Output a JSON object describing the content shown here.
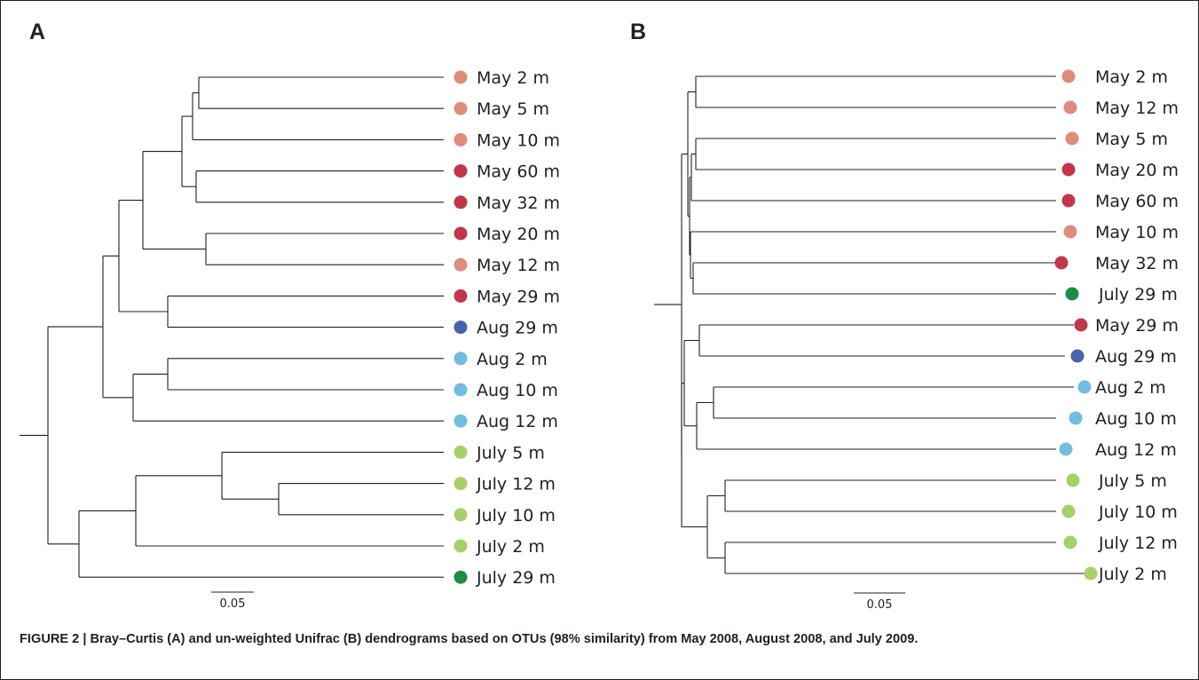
{
  "panels": [
    {
      "letter": "A",
      "leaves": [
        {
          "label": "May 2 m",
          "group": "may_shallow"
        },
        {
          "label": "May 5 m",
          "group": "may_shallow"
        },
        {
          "label": "May 10 m",
          "group": "may_shallow"
        },
        {
          "label": "May 60 m",
          "group": "may_deep"
        },
        {
          "label": "May 32 m",
          "group": "may_deep"
        },
        {
          "label": "May 20 m",
          "group": "may_deep"
        },
        {
          "label": "May 12 m",
          "group": "may_shallow"
        },
        {
          "label": "May 29 m",
          "group": "may_deep"
        },
        {
          "label": "Aug 29 m",
          "group": "aug_deep"
        },
        {
          "label": "Aug 2 m",
          "group": "aug_shallow"
        },
        {
          "label": "Aug 10 m",
          "group": "aug_shallow"
        },
        {
          "label": "Aug 12 m",
          "group": "aug_shallow"
        },
        {
          "label": "July 5 m",
          "group": "july_shallow"
        },
        {
          "label": "July 12 m",
          "group": "july_shallow"
        },
        {
          "label": "July 10 m",
          "group": "july_shallow"
        },
        {
          "label": "July 2 m",
          "group": "july_shallow"
        },
        {
          "label": "July 29 m",
          "group": "july_deep"
        }
      ],
      "scale_label": "0.05"
    },
    {
      "letter": "B",
      "leaves": [
        {
          "label": "May 2 m",
          "group": "may_shallow"
        },
        {
          "label": "May 12 m",
          "group": "may_shallow"
        },
        {
          "label": "May 5 m",
          "group": "may_shallow"
        },
        {
          "label": "May 20 m",
          "group": "may_deep"
        },
        {
          "label": "May 60 m",
          "group": "may_deep"
        },
        {
          "label": "May 10 m",
          "group": "may_shallow"
        },
        {
          "label": "May 32 m",
          "group": "may_deep"
        },
        {
          "label": "July 29 m",
          "group": "july_deep"
        },
        {
          "label": "May 29 m",
          "group": "may_deep"
        },
        {
          "label": "Aug 29 m",
          "group": "aug_deep"
        },
        {
          "label": "Aug 2 m",
          "group": "aug_shallow"
        },
        {
          "label": "Aug 10 m",
          "group": "aug_shallow"
        },
        {
          "label": "Aug 12 m",
          "group": "aug_shallow"
        },
        {
          "label": "July 5 m",
          "group": "july_shallow"
        },
        {
          "label": "July 10 m",
          "group": "july_shallow"
        },
        {
          "label": "July 12 m",
          "group": "july_shallow"
        },
        {
          "label": "July 2 m",
          "group": "july_shallow"
        }
      ],
      "scale_label": "0.05"
    }
  ],
  "group_colors": {
    "may_shallow": "#dd8c7e",
    "may_deep": "#c0364a",
    "aug_deep": "#4c62aa",
    "aug_shallow": "#70bde0",
    "july_shallow": "#a8d06a",
    "july_deep": "#1f8c45"
  },
  "line_color": "#231f20",
  "caption": "FIGURE 2 | Bray–Curtis (A) and un-weighted Unifrac (B) dendrograms based on OTUs (98% similarity) from May 2008, August 2008, and July 2009."
}
